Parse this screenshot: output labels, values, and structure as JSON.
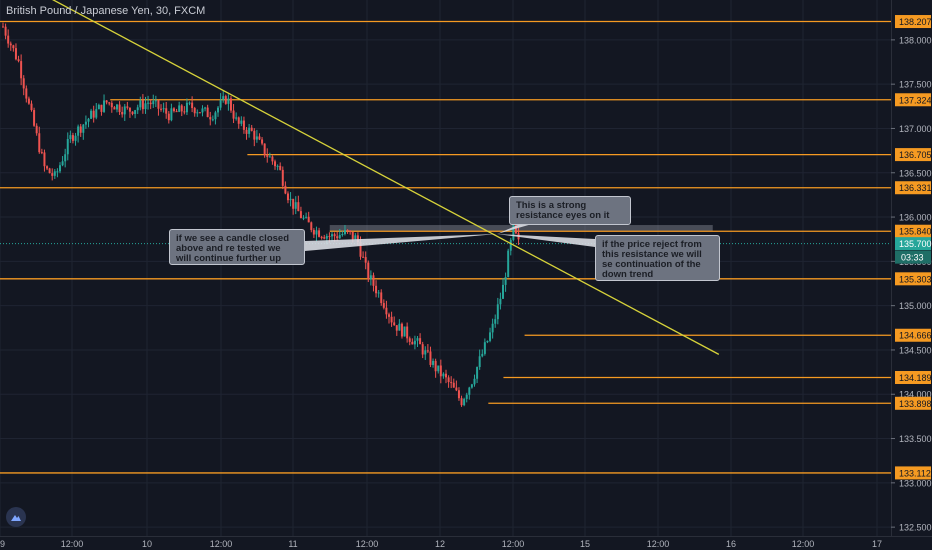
{
  "title": "British Pound / Japanese Yen, 30, FXCM",
  "countdown": "03:33",
  "colors": {
    "background": "#131722",
    "grid": "#1f2432",
    "up_candle": "#26a69a",
    "down_candle": "#ef5350",
    "level_line": "#f59a22",
    "trend_line": "#d6d23a",
    "last_price": "#26a69a",
    "note_fill": "#6d7380"
  },
  "annotations": [
    "This is a strong resistance eyes on it",
    "if we see a candle closed above and re tested we will continue further up",
    "if the price reject from this resistance we will se continuation of the down trend"
  ],
  "chart_data": {
    "type": "candlestick",
    "ylim": [
      132.4,
      138.45
    ],
    "y_ticks": [
      "138.000",
      "137.500",
      "137.000",
      "136.500",
      "136.000",
      "135.500",
      "135.000",
      "134.500",
      "134.000",
      "133.500",
      "133.000",
      "132.500"
    ],
    "x_ticks": [
      "9",
      "12:00",
      "10",
      "12:00",
      "11",
      "12:00",
      "12",
      "12:00",
      "15",
      "12:00",
      "16",
      "12:00",
      "17"
    ],
    "horizontal_levels": [
      {
        "label": "138.207",
        "value": 138.207,
        "from": "9"
      },
      {
        "label": "137.324",
        "value": 137.324,
        "from": "9 18:00"
      },
      {
        "label": "136.705",
        "value": 136.705,
        "from": "10 16:30"
      },
      {
        "label": "136.331",
        "value": 136.331,
        "from": "9"
      },
      {
        "label": "135.840",
        "value": 135.84,
        "from": "11 06:00",
        "zone_top": 135.91,
        "zone_to": "15 21:00"
      },
      {
        "label": "135.303",
        "value": 135.303,
        "from": "9"
      },
      {
        "label": "134.666",
        "value": 134.666,
        "from": "12 14:00"
      },
      {
        "label": "134.189",
        "value": 134.189,
        "from": "12 10:30"
      },
      {
        "label": "133.898",
        "value": 133.898,
        "from": "12 08:00"
      },
      {
        "label": "133.112",
        "value": 133.112,
        "from": "9"
      }
    ],
    "last_price": {
      "label": "135.700",
      "value": 135.7
    },
    "trend_line": {
      "from": {
        "x": "9 06:00",
        "y": 138.55
      },
      "to": {
        "x": "15 22:00",
        "y": 134.45
      }
    },
    "close_path": [
      [
        0,
        138.15
      ],
      [
        3,
        137.75
      ],
      [
        5,
        137.25
      ],
      [
        8,
        136.55
      ],
      [
        10,
        136.45
      ],
      [
        13,
        136.9
      ],
      [
        17,
        137.15
      ],
      [
        20,
        137.3
      ],
      [
        24,
        137.2
      ],
      [
        28,
        137.3
      ],
      [
        32,
        137.15
      ],
      [
        36,
        137.25
      ],
      [
        40,
        137.15
      ],
      [
        43,
        137.35
      ],
      [
        45,
        137.05
      ],
      [
        48,
        136.95
      ],
      [
        50,
        136.75
      ],
      [
        53,
        136.55
      ],
      [
        55,
        136.2
      ],
      [
        58,
        135.95
      ],
      [
        60,
        135.85
      ],
      [
        63,
        135.78
      ],
      [
        66,
        135.82
      ],
      [
        68,
        135.75
      ],
      [
        70,
        135.35
      ],
      [
        73,
        135.05
      ],
      [
        75,
        134.8
      ],
      [
        77,
        134.7
      ],
      [
        80,
        134.55
      ],
      [
        83,
        134.3
      ],
      [
        86,
        134.1
      ],
      [
        88,
        133.92
      ],
      [
        90,
        134.15
      ],
      [
        92,
        134.45
      ],
      [
        94,
        134.75
      ],
      [
        96,
        135.2
      ],
      [
        97,
        135.55
      ],
      [
        98,
        135.85
      ],
      [
        99,
        135.7
      ]
    ]
  }
}
